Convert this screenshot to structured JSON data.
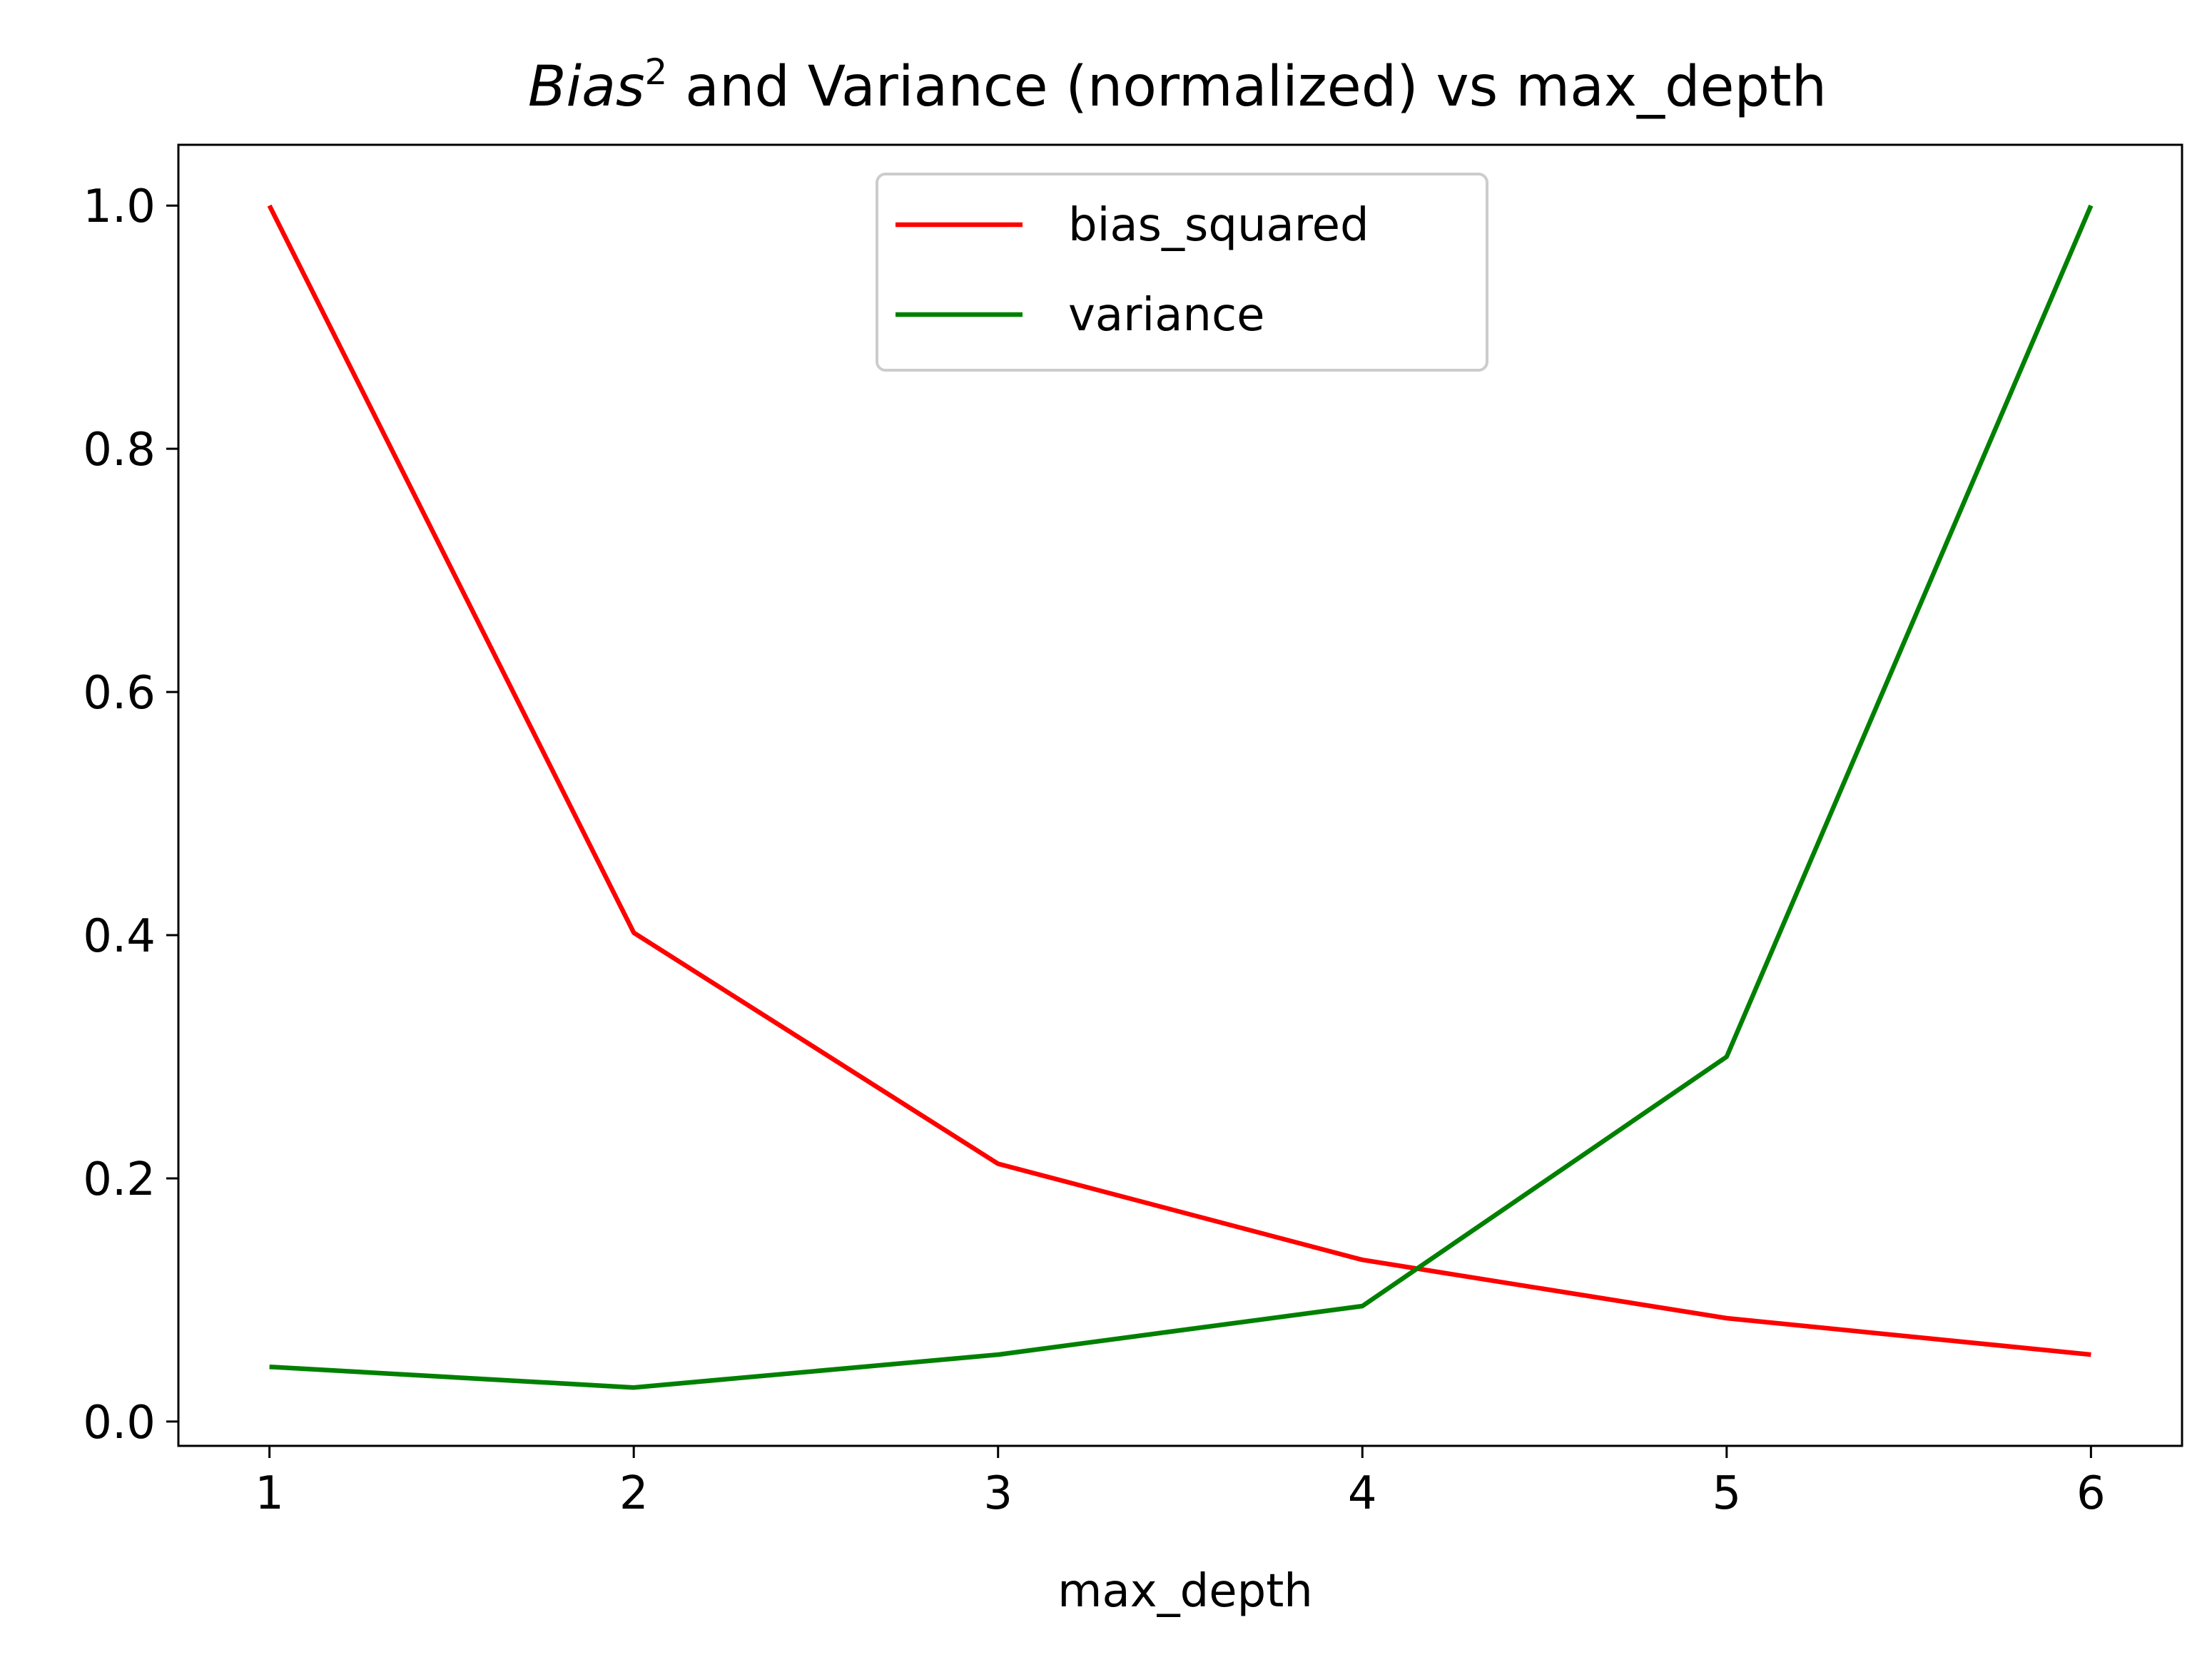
{
  "chart_data": {
    "type": "line",
    "title": {
      "italic": "Bias",
      "superscript": "2",
      "rest": " and Variance (normalized) vs max_depth"
    },
    "xlabel": "max_depth",
    "ylabel": "",
    "x": [
      1,
      2,
      3,
      4,
      5,
      6
    ],
    "x_ticks": [
      "1",
      "2",
      "3",
      "4",
      "5",
      "6"
    ],
    "y_ticks": [
      "0.0",
      "0.2",
      "0.4",
      "0.6",
      "0.8",
      "1.0"
    ],
    "xlim": [
      0.75,
      6.25
    ],
    "ylim": [
      -0.02,
      1.05
    ],
    "grid": false,
    "legend_position": "upper center",
    "series": [
      {
        "name": "bias_squared",
        "color": "#ff0000",
        "values": [
          1.0,
          0.402,
          0.212,
          0.133,
          0.085,
          0.055
        ]
      },
      {
        "name": "variance",
        "color": "#008000",
        "values": [
          0.045,
          0.028,
          0.055,
          0.095,
          0.3,
          1.0
        ]
      }
    ]
  }
}
